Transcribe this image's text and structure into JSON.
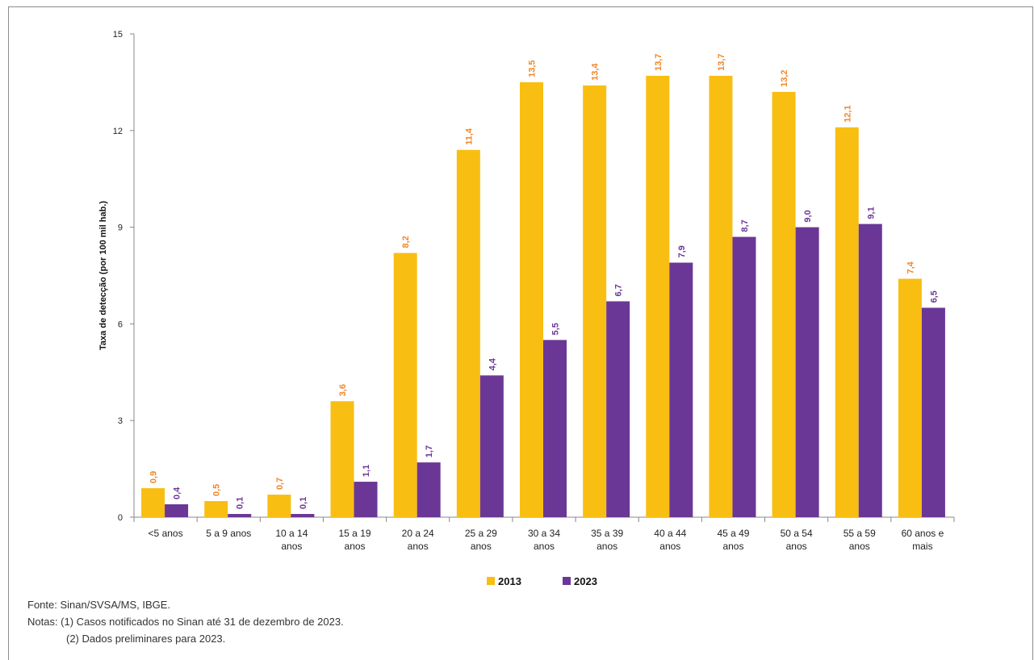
{
  "chart_data": {
    "type": "bar",
    "ylabel": "Taxa de detecção (por 100 mil hab.)",
    "ylim": [
      0,
      15
    ],
    "yticks": [
      "0",
      "3",
      "6",
      "9",
      "12",
      "15"
    ],
    "categories": [
      [
        "<5 anos"
      ],
      [
        "5 a 9 anos"
      ],
      [
        "10 a 14",
        "anos"
      ],
      [
        "15 a 19",
        "anos"
      ],
      [
        "20 a 24",
        "anos"
      ],
      [
        "25 a 29",
        "anos"
      ],
      [
        "30 a 34",
        "anos"
      ],
      [
        "35 a 39",
        "anos"
      ],
      [
        "40 a 44",
        "anos"
      ],
      [
        "45 a 49",
        "anos"
      ],
      [
        "50 a 54",
        "anos"
      ],
      [
        "55 a 59",
        "anos"
      ],
      [
        "60 anos e",
        "mais"
      ]
    ],
    "series": [
      {
        "name": "2013",
        "color": "#F9BE12",
        "label_color": "#F0872A",
        "values": [
          0.9,
          0.5,
          0.7,
          3.6,
          8.2,
          11.4,
          13.5,
          13.4,
          13.7,
          13.7,
          13.2,
          12.1,
          7.4
        ],
        "labels": [
          "0,9",
          "0,5",
          "0,7",
          "3,6",
          "8,2",
          "11,4",
          "13,5",
          "13,4",
          "13,7",
          "13,7",
          "13,2",
          "12,1",
          "7,4"
        ]
      },
      {
        "name": "2023",
        "color": "#6B3796",
        "label_color": "#6B3796",
        "values": [
          0.4,
          0.1,
          0.1,
          1.1,
          1.7,
          4.4,
          5.5,
          6.7,
          7.9,
          8.7,
          9.0,
          9.1,
          6.5
        ],
        "labels": [
          "0,4",
          "0,1",
          "0,1",
          "1,1",
          "1,7",
          "4,4",
          "5,5",
          "6,7",
          "7,9",
          "8,7",
          "9,0",
          "9,1",
          "6,5"
        ]
      }
    ],
    "legend_position": "bottom-center",
    "grid": false
  },
  "notes": {
    "source": "Fonte: Sinan/SVSA/MS, IBGE.",
    "note1": "Notas: (1) Casos notificados no Sinan até 31 de dezembro de 2023.",
    "note2": "(2) Dados preliminares para 2023."
  }
}
